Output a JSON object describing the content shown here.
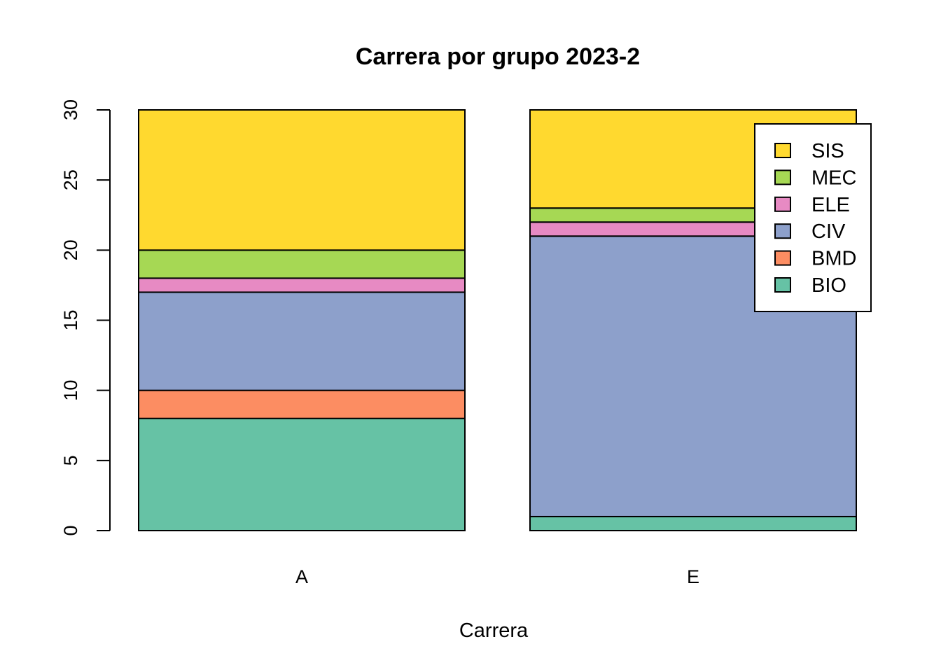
{
  "chart_data": {
    "type": "bar",
    "stacked": true,
    "title": "Carrera por grupo 2023-2",
    "xlabel": "Carrera",
    "ylabel": "",
    "categories": [
      "A",
      "E"
    ],
    "ylim": [
      0,
      30
    ],
    "yticks": [
      0,
      5,
      10,
      15,
      20,
      25,
      30
    ],
    "grid": false,
    "legend_position": "top-right",
    "series": [
      {
        "name": "BIO",
        "values": [
          8,
          1
        ],
        "color": "#66c2a5"
      },
      {
        "name": "BMD",
        "values": [
          2,
          0
        ],
        "color": "#fc8d62"
      },
      {
        "name": "CIV",
        "values": [
          7,
          20
        ],
        "color": "#8da0cb"
      },
      {
        "name": "ELE",
        "values": [
          1,
          1
        ],
        "color": "#e78ac3"
      },
      {
        "name": "MEC",
        "values": [
          2,
          1
        ],
        "color": "#a6d854"
      },
      {
        "name": "SIS",
        "values": [
          10,
          7
        ],
        "color": "#ffd92f"
      }
    ],
    "legend_order": [
      "SIS",
      "MEC",
      "ELE",
      "CIV",
      "BMD",
      "BIO"
    ]
  }
}
